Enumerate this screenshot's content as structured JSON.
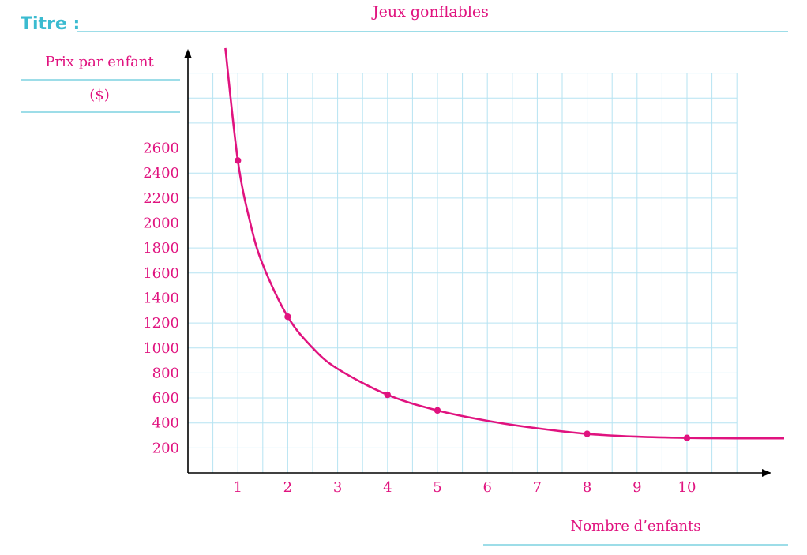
{
  "colors": {
    "accent_pink": "#e0137f",
    "title_label": "#3bbbd0",
    "grid": "#b6e3f2",
    "axis": "#000000"
  },
  "header": {
    "title_label": "Titre :",
    "title_text": "Jeux gonflables"
  },
  "chart_data": {
    "type": "line",
    "title": "Jeux gonflables",
    "xlabel": "Nombre d’enfants",
    "ylabel_lines": [
      "Prix par enfant",
      "($)"
    ],
    "x_ticks": [
      1,
      2,
      3,
      4,
      5,
      6,
      7,
      8,
      9,
      10
    ],
    "y_ticks": [
      200,
      400,
      600,
      800,
      1000,
      1200,
      1400,
      1600,
      1800,
      2000,
      2200,
      2400,
      2600
    ],
    "xlim": [
      0,
      11
    ],
    "ylim": [
      0,
      3200
    ],
    "grid": true,
    "series": [
      {
        "points": [
          {
            "x": 1,
            "y": 2500
          },
          {
            "x": 2,
            "y": 1250
          },
          {
            "x": 4,
            "y": 625
          },
          {
            "x": 5,
            "y": 500
          },
          {
            "x": 8,
            "y": 312.5
          },
          {
            "x": 10,
            "y": 280
          }
        ],
        "curve": [
          {
            "x": 0.75,
            "y": 3400
          },
          {
            "x": 1,
            "y": 2500
          },
          {
            "x": 1.25,
            "y": 2000
          },
          {
            "x": 1.5,
            "y": 1667
          },
          {
            "x": 2,
            "y": 1250
          },
          {
            "x": 2.5,
            "y": 1000
          },
          {
            "x": 3,
            "y": 833
          },
          {
            "x": 4,
            "y": 625
          },
          {
            "x": 5,
            "y": 500
          },
          {
            "x": 6,
            "y": 417
          },
          {
            "x": 7,
            "y": 357
          },
          {
            "x": 8,
            "y": 312.5
          },
          {
            "x": 9,
            "y": 290
          },
          {
            "x": 10,
            "y": 280
          },
          {
            "x": 11,
            "y": 277
          },
          {
            "x": 12.1,
            "y": 277
          }
        ]
      }
    ]
  }
}
